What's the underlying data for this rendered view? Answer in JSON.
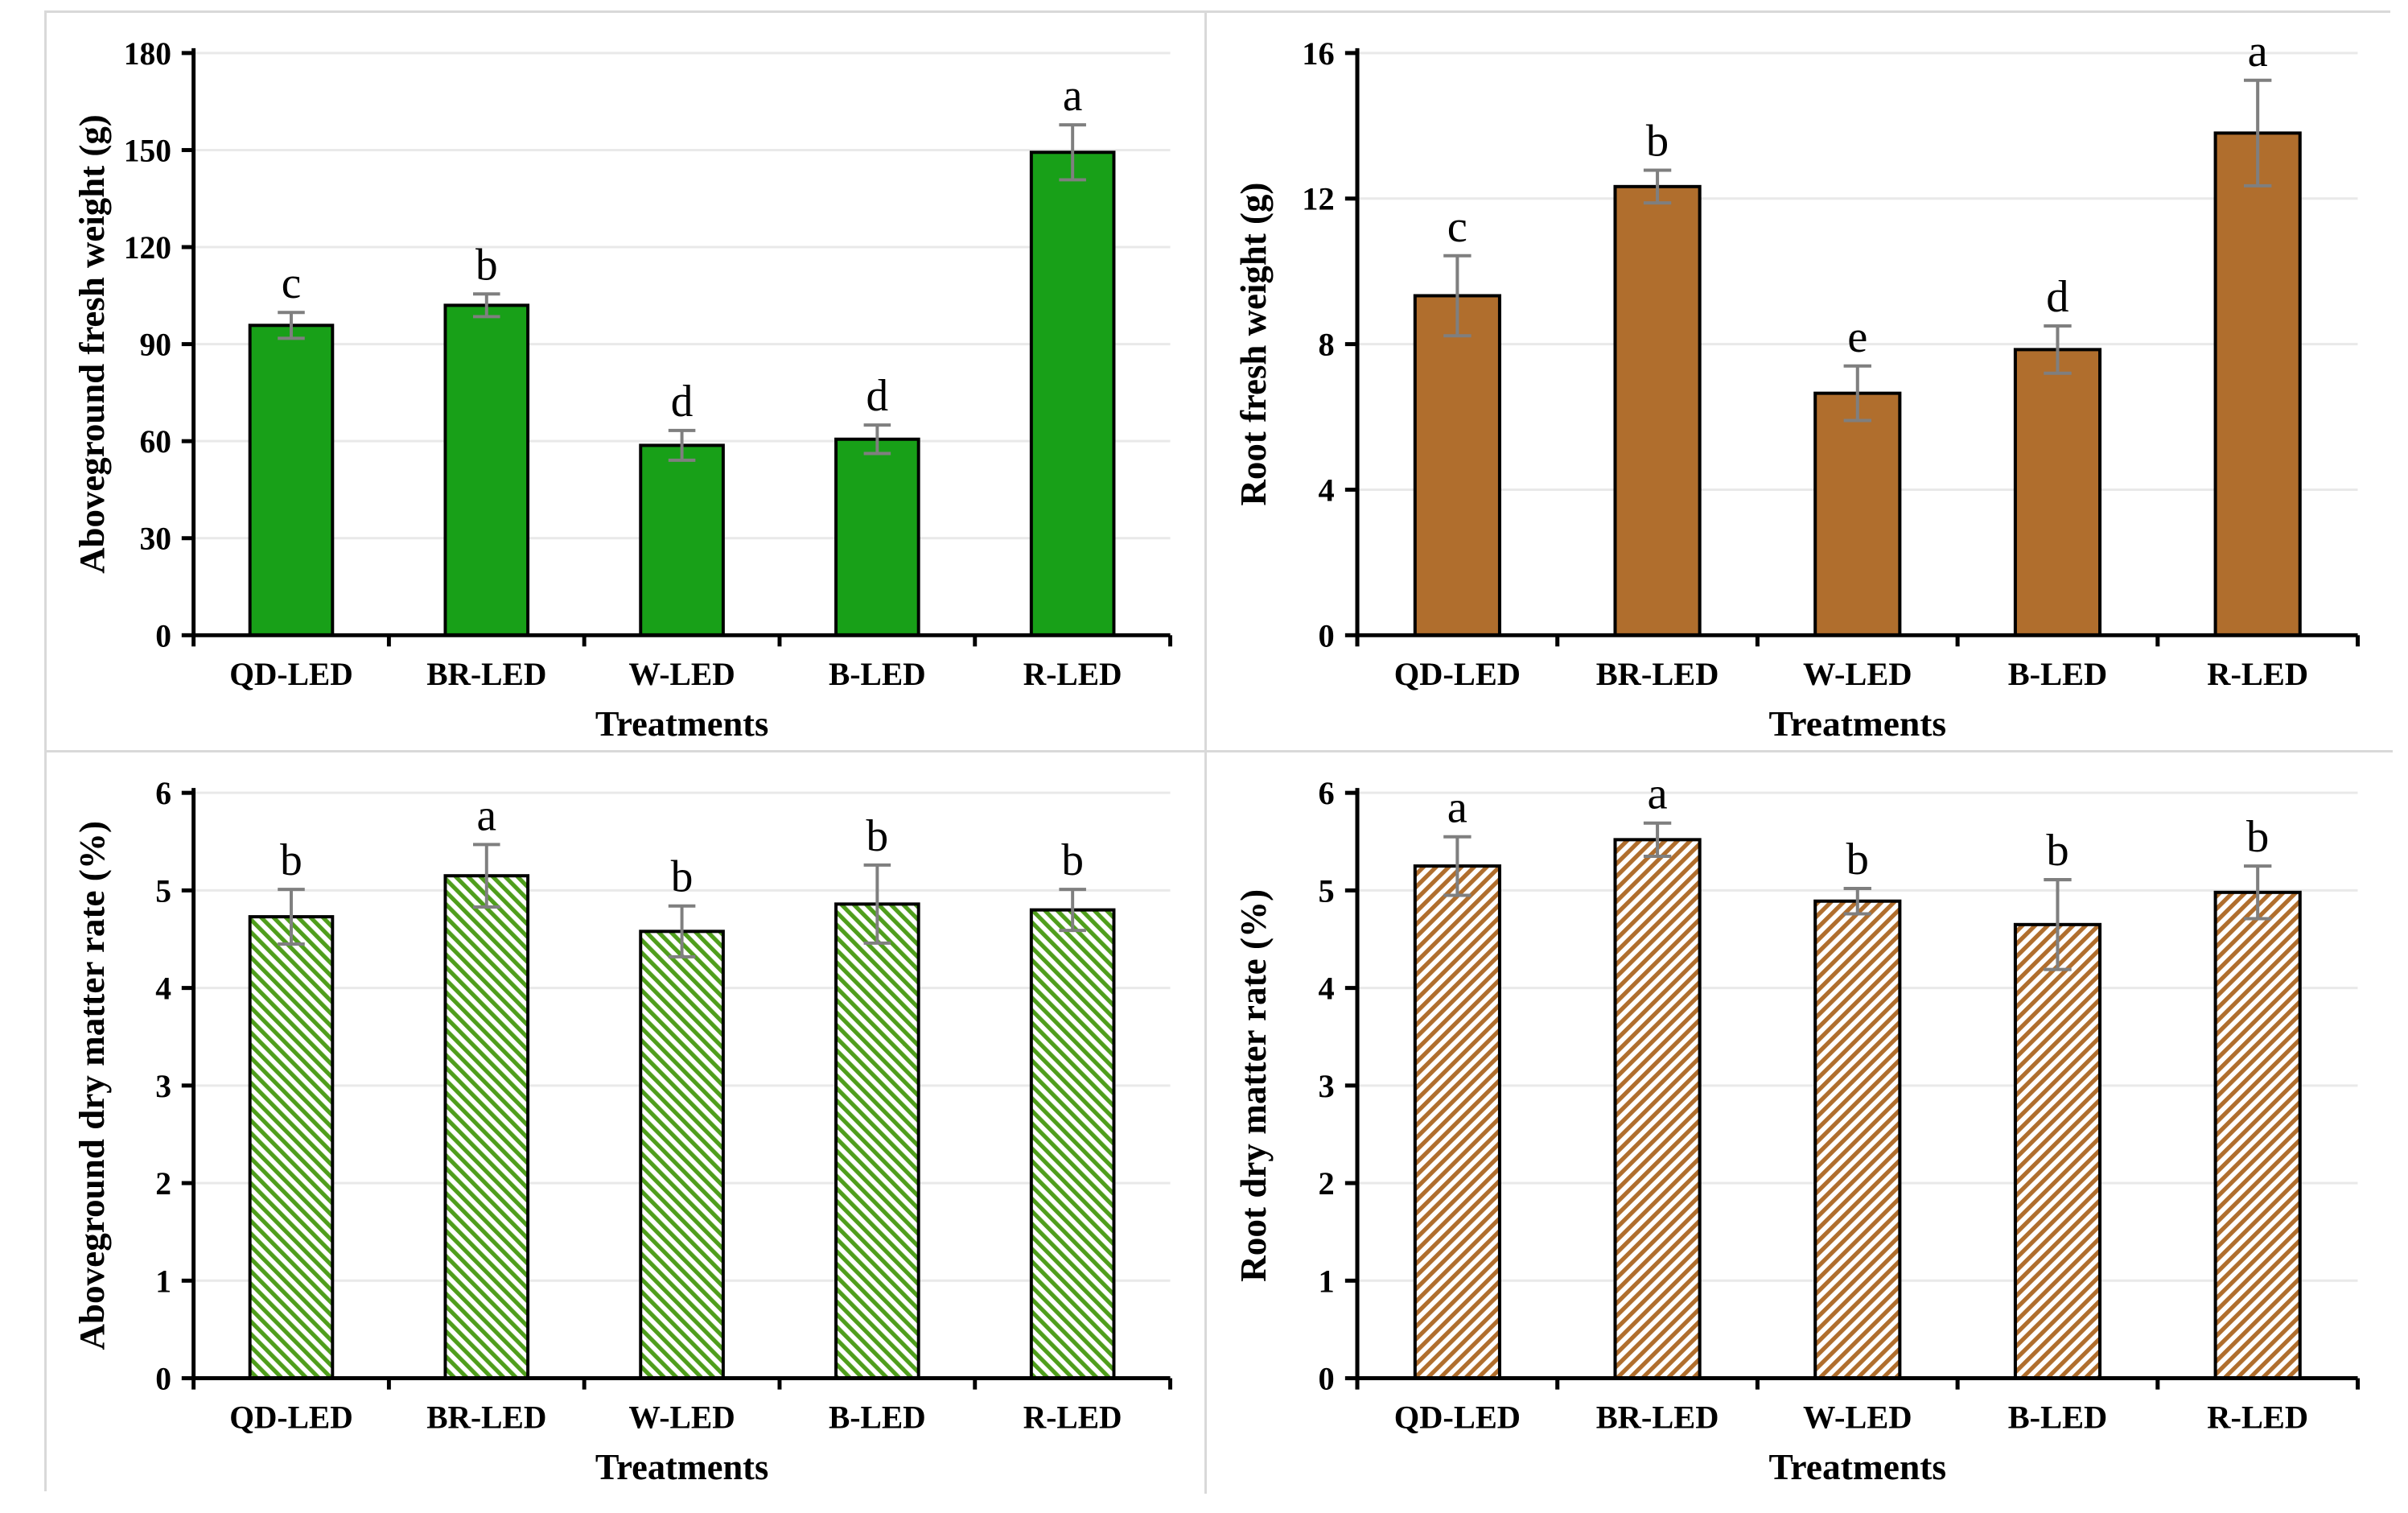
{
  "figure": {
    "x_axis_title": "Treatments",
    "categories": [
      "QD-LED",
      "BR-LED",
      "W-LED",
      "B-LED",
      "R-LED"
    ],
    "colors": {
      "solid_green": "#18a018",
      "hatch_green": "#4f9e1c",
      "solid_brown": "#b06e2d",
      "hatch_brown": "#b06e2d",
      "bar_outline": "#000000",
      "error_bar": "#7f7f7f",
      "gridline": "#e9e9e9",
      "axis": "#000000",
      "panel_border": "#d9d9d9",
      "text": "#000000"
    }
  },
  "chart_data": [
    {
      "id": "aboveground-fresh-weight",
      "type": "bar",
      "position": "top-left",
      "title": "",
      "ylabel": "Aboveground fresh weight (g)",
      "xlabel": "Treatments",
      "ylim": [
        0,
        180
      ],
      "yticks": [
        0,
        30,
        60,
        90,
        120,
        150,
        180
      ],
      "grid": "horizontal",
      "legend": "none",
      "fill_style": "solid",
      "fill_color": "#18a018",
      "categories": [
        "QD-LED",
        "BR-LED",
        "W-LED",
        "B-LED",
        "R-LED"
      ],
      "values": [
        95.8,
        102.0,
        58.7,
        60.6,
        149.3
      ],
      "errors": [
        4.0,
        3.5,
        4.6,
        4.4,
        8.5
      ],
      "sig_letters": [
        "c",
        "b",
        "d",
        "d",
        "a"
      ]
    },
    {
      "id": "root-fresh-weight",
      "type": "bar",
      "position": "top-right",
      "title": "",
      "ylabel": "Root fresh weight (g)",
      "xlabel": "Treatments",
      "ylim": [
        0,
        16
      ],
      "yticks": [
        0,
        4,
        8,
        12,
        16
      ],
      "grid": "horizontal",
      "legend": "none",
      "fill_style": "solid",
      "fill_color": "#b06e2d",
      "categories": [
        "QD-LED",
        "BR-LED",
        "W-LED",
        "B-LED",
        "R-LED"
      ],
      "values": [
        9.33,
        12.33,
        6.65,
        7.85,
        13.8
      ],
      "errors": [
        1.1,
        0.45,
        0.75,
        0.65,
        1.45
      ],
      "sig_letters": [
        "c",
        "b",
        "e",
        "d",
        "a"
      ]
    },
    {
      "id": "aboveground-dry-matter-rate",
      "type": "bar",
      "position": "bottom-left",
      "title": "",
      "ylabel": "Aboveground dry matter rate (%)",
      "xlabel": "Treatments",
      "ylim": [
        0,
        6
      ],
      "yticks": [
        0,
        1,
        2,
        3,
        4,
        5,
        6
      ],
      "grid": "horizontal",
      "legend": "none",
      "fill_style": "hatch-down",
      "fill_color": "#4f9e1c",
      "categories": [
        "QD-LED",
        "BR-LED",
        "W-LED",
        "B-LED",
        "R-LED"
      ],
      "values": [
        4.73,
        5.15,
        4.58,
        4.86,
        4.8
      ],
      "errors": [
        0.28,
        0.32,
        0.26,
        0.4,
        0.21
      ],
      "sig_letters": [
        "b",
        "a",
        "b",
        "b",
        "b"
      ]
    },
    {
      "id": "root-dry-matter-rate",
      "type": "bar",
      "position": "bottom-right",
      "title": "",
      "ylabel": "Root dry matter rate (%)",
      "xlabel": "Treatments",
      "ylim": [
        0,
        6
      ],
      "yticks": [
        0,
        1,
        2,
        3,
        4,
        5,
        6
      ],
      "grid": "horizontal",
      "legend": "none",
      "fill_style": "hatch-up",
      "fill_color": "#b06e2d",
      "categories": [
        "QD-LED",
        "BR-LED",
        "W-LED",
        "B-LED",
        "R-LED"
      ],
      "values": [
        5.25,
        5.52,
        4.89,
        4.65,
        4.98
      ],
      "errors": [
        0.3,
        0.17,
        0.13,
        0.46,
        0.27
      ],
      "sig_letters": [
        "a",
        "a",
        "b",
        "b",
        "b"
      ]
    }
  ]
}
